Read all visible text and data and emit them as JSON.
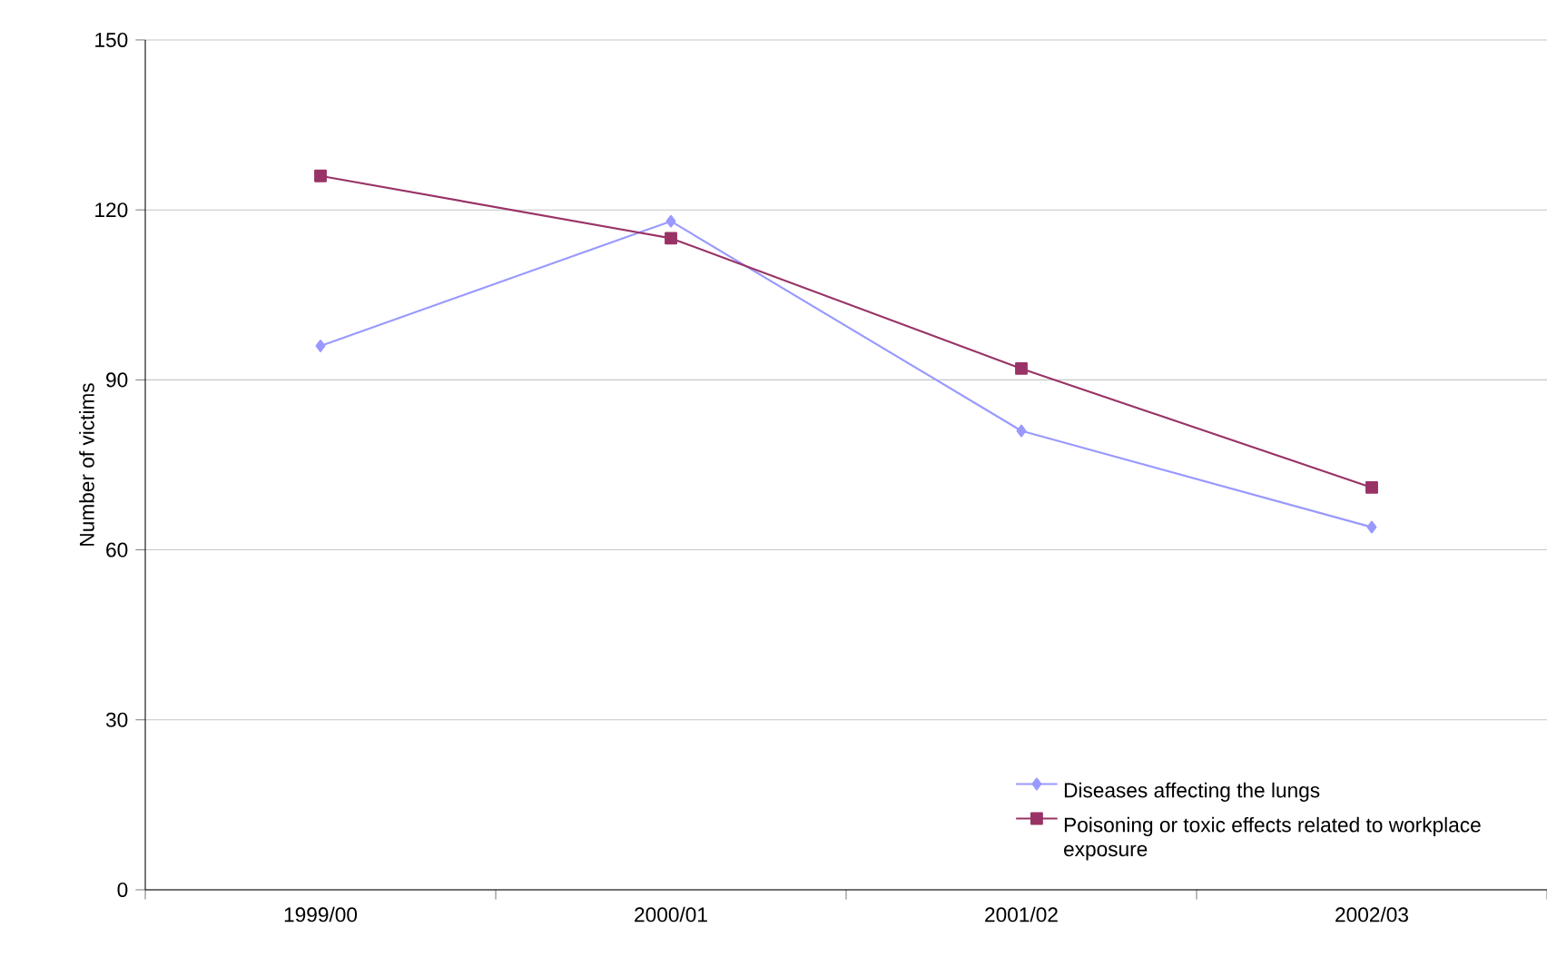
{
  "chart_data": {
    "type": "line",
    "ylabel": "Number of victims",
    "categories": [
      "1999/00",
      "2000/01",
      "2001/02",
      "2002/03"
    ],
    "series": [
      {
        "name": "Diseases affecting the lungs",
        "color": "#9999ff",
        "marker": "diamond",
        "values": [
          96,
          118,
          81,
          64
        ]
      },
      {
        "name": "Poisoning or toxic effects related to workplace exposure",
        "color": "#993366",
        "marker": "square",
        "values": [
          126,
          115,
          92,
          71
        ]
      }
    ],
    "ylim": [
      0,
      150
    ],
    "yticks": [
      0,
      30,
      60,
      90,
      120,
      150
    ],
    "grid": "y",
    "legend": "bottom right",
    "line_style": "solid"
  }
}
